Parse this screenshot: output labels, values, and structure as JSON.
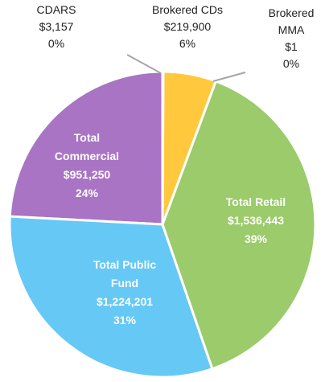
{
  "chart_data": {
    "type": "pie",
    "categories": [
      "CDARS",
      "Brokered CDs",
      "Brokered MMA",
      "Total Retail",
      "Total Public Fund",
      "Total Commercial"
    ],
    "values": [
      3157,
      219900,
      1,
      1536443,
      1224201,
      951250
    ],
    "value_labels": [
      "$3,157",
      "$219,900",
      "$1",
      "$1,536,443",
      "$1,224,201",
      "$951,250"
    ],
    "percentages": [
      0,
      6,
      0,
      39,
      31,
      24
    ],
    "percentage_labels": [
      "0%",
      "6%",
      "0%",
      "39%",
      "31%",
      "24%"
    ],
    "colors": [
      "#8c8c8c",
      "#ffc83d",
      "#7f7f7f",
      "#9bcb6a",
      "#66c8f5",
      "#a974c4"
    ]
  }
}
